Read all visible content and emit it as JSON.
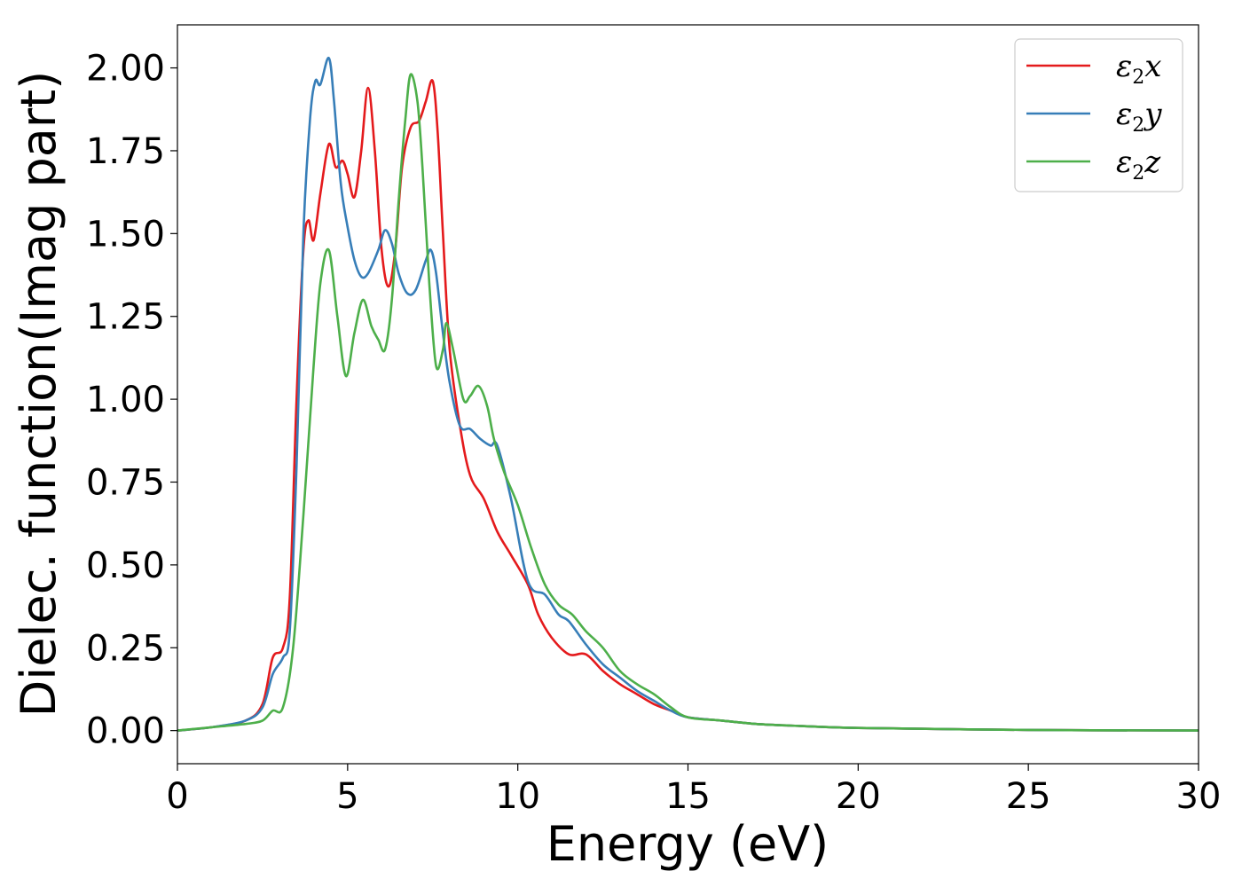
{
  "chart_data": {
    "type": "line",
    "title": "",
    "xlabel": "Energy (eV)",
    "ylabel": "Dielec. function(Imag part)",
    "xlim": [
      0,
      30
    ],
    "ylim": [
      -0.1,
      2.13
    ],
    "xticks": [
      0,
      5,
      10,
      15,
      20,
      25,
      30
    ],
    "xtick_labels": [
      "0",
      "5",
      "10",
      "15",
      "20",
      "25",
      "30"
    ],
    "yticks": [
      0,
      0.25,
      0.5,
      0.75,
      1.0,
      1.25,
      1.5,
      1.75,
      2.0
    ],
    "ytick_labels": [
      "0.00",
      "0.25",
      "0.50",
      "0.75",
      "1.00",
      "1.25",
      "1.50",
      "1.75",
      "2.00"
    ],
    "grid": false,
    "legend_position": "top-right",
    "series": [
      {
        "name": "ε2x",
        "symbol": "ε",
        "sub": "2",
        "axis": "x",
        "color": "#e41a1c",
        "points": [
          [
            0,
            0
          ],
          [
            1,
            0.01
          ],
          [
            2,
            0.03
          ],
          [
            2.5,
            0.08
          ],
          [
            2.8,
            0.22
          ],
          [
            3.1,
            0.25
          ],
          [
            3.3,
            0.4
          ],
          [
            3.5,
            1.0
          ],
          [
            3.7,
            1.45
          ],
          [
            3.85,
            1.54
          ],
          [
            4.0,
            1.48
          ],
          [
            4.2,
            1.62
          ],
          [
            4.45,
            1.77
          ],
          [
            4.65,
            1.7
          ],
          [
            4.85,
            1.72
          ],
          [
            5.0,
            1.68
          ],
          [
            5.2,
            1.61
          ],
          [
            5.4,
            1.75
          ],
          [
            5.6,
            1.94
          ],
          [
            5.8,
            1.75
          ],
          [
            6.0,
            1.45
          ],
          [
            6.2,
            1.34
          ],
          [
            6.4,
            1.45
          ],
          [
            6.6,
            1.7
          ],
          [
            6.85,
            1.82
          ],
          [
            7.1,
            1.84
          ],
          [
            7.3,
            1.9
          ],
          [
            7.5,
            1.96
          ],
          [
            7.65,
            1.8
          ],
          [
            7.8,
            1.5
          ],
          [
            8.0,
            1.15
          ],
          [
            8.3,
            0.92
          ],
          [
            8.6,
            0.77
          ],
          [
            9.0,
            0.7
          ],
          [
            9.4,
            0.6
          ],
          [
            9.8,
            0.53
          ],
          [
            10.3,
            0.44
          ],
          [
            10.6,
            0.35
          ],
          [
            11.0,
            0.28
          ],
          [
            11.5,
            0.23
          ],
          [
            12.0,
            0.23
          ],
          [
            12.5,
            0.18
          ],
          [
            13.0,
            0.14
          ],
          [
            13.5,
            0.11
          ],
          [
            14.0,
            0.08
          ],
          [
            14.5,
            0.06
          ],
          [
            15,
            0.04
          ],
          [
            16,
            0.03
          ],
          [
            17,
            0.02
          ],
          [
            18,
            0.015
          ],
          [
            20,
            0.008
          ],
          [
            25,
            0.002
          ],
          [
            30,
            0
          ]
        ]
      },
      {
        "name": "ε2y",
        "symbol": "ε",
        "sub": "2",
        "axis": "y",
        "color": "#377eb8",
        "points": [
          [
            0,
            0
          ],
          [
            1,
            0.01
          ],
          [
            2,
            0.03
          ],
          [
            2.5,
            0.07
          ],
          [
            2.8,
            0.17
          ],
          [
            3.1,
            0.22
          ],
          [
            3.3,
            0.3
          ],
          [
            3.5,
            0.8
          ],
          [
            3.7,
            1.5
          ],
          [
            3.9,
            1.85
          ],
          [
            4.05,
            1.96
          ],
          [
            4.2,
            1.95
          ],
          [
            4.45,
            2.03
          ],
          [
            4.6,
            1.9
          ],
          [
            4.8,
            1.65
          ],
          [
            5.0,
            1.52
          ],
          [
            5.2,
            1.42
          ],
          [
            5.4,
            1.37
          ],
          [
            5.6,
            1.38
          ],
          [
            5.9,
            1.45
          ],
          [
            6.1,
            1.51
          ],
          [
            6.3,
            1.47
          ],
          [
            6.5,
            1.38
          ],
          [
            6.75,
            1.32
          ],
          [
            7.0,
            1.33
          ],
          [
            7.3,
            1.42
          ],
          [
            7.45,
            1.45
          ],
          [
            7.6,
            1.38
          ],
          [
            7.8,
            1.2
          ],
          [
            8.0,
            1.05
          ],
          [
            8.3,
            0.92
          ],
          [
            8.6,
            0.91
          ],
          [
            8.9,
            0.88
          ],
          [
            9.2,
            0.86
          ],
          [
            9.4,
            0.86
          ],
          [
            9.8,
            0.7
          ],
          [
            10.3,
            0.45
          ],
          [
            10.8,
            0.41
          ],
          [
            11.2,
            0.35
          ],
          [
            11.5,
            0.33
          ],
          [
            12.0,
            0.26
          ],
          [
            12.5,
            0.2
          ],
          [
            13.0,
            0.16
          ],
          [
            13.5,
            0.12
          ],
          [
            14.0,
            0.09
          ],
          [
            14.5,
            0.06
          ],
          [
            15,
            0.04
          ],
          [
            16,
            0.03
          ],
          [
            17,
            0.02
          ],
          [
            18,
            0.015
          ],
          [
            20,
            0.008
          ],
          [
            25,
            0.002
          ],
          [
            30,
            0
          ]
        ]
      },
      {
        "name": "ε2z",
        "symbol": "ε",
        "sub": "2",
        "axis": "z",
        "color": "#4daf4a",
        "points": [
          [
            0,
            0
          ],
          [
            1,
            0.01
          ],
          [
            2,
            0.02
          ],
          [
            2.5,
            0.03
          ],
          [
            2.8,
            0.06
          ],
          [
            3.1,
            0.07
          ],
          [
            3.4,
            0.25
          ],
          [
            3.7,
            0.65
          ],
          [
            4.0,
            1.1
          ],
          [
            4.2,
            1.35
          ],
          [
            4.45,
            1.45
          ],
          [
            4.7,
            1.25
          ],
          [
            4.95,
            1.07
          ],
          [
            5.2,
            1.2
          ],
          [
            5.45,
            1.3
          ],
          [
            5.7,
            1.22
          ],
          [
            5.9,
            1.18
          ],
          [
            6.1,
            1.15
          ],
          [
            6.3,
            1.3
          ],
          [
            6.5,
            1.6
          ],
          [
            6.7,
            1.85
          ],
          [
            6.85,
            1.98
          ],
          [
            7.05,
            1.9
          ],
          [
            7.2,
            1.7
          ],
          [
            7.4,
            1.35
          ],
          [
            7.6,
            1.1
          ],
          [
            7.8,
            1.15
          ],
          [
            7.9,
            1.23
          ],
          [
            8.1,
            1.15
          ],
          [
            8.4,
            1.0
          ],
          [
            8.6,
            1.01
          ],
          [
            8.85,
            1.04
          ],
          [
            9.1,
            0.98
          ],
          [
            9.3,
            0.88
          ],
          [
            9.6,
            0.78
          ],
          [
            10.0,
            0.68
          ],
          [
            10.4,
            0.55
          ],
          [
            10.8,
            0.44
          ],
          [
            11.2,
            0.38
          ],
          [
            11.6,
            0.35
          ],
          [
            12.0,
            0.3
          ],
          [
            12.5,
            0.25
          ],
          [
            13.0,
            0.18
          ],
          [
            13.5,
            0.14
          ],
          [
            14.0,
            0.11
          ],
          [
            14.5,
            0.07
          ],
          [
            15,
            0.04
          ],
          [
            16,
            0.03
          ],
          [
            17,
            0.02
          ],
          [
            18,
            0.015
          ],
          [
            20,
            0.008
          ],
          [
            25,
            0.002
          ],
          [
            30,
            0
          ]
        ]
      }
    ]
  }
}
